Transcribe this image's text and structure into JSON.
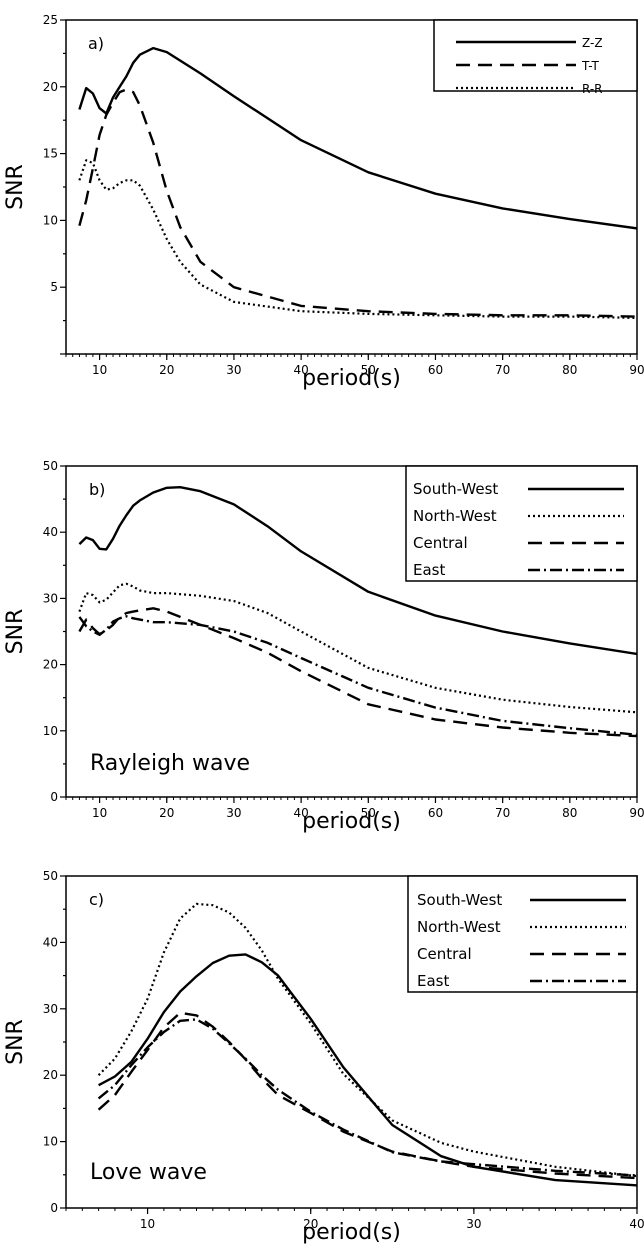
{
  "chart_data": [
    {
      "type": "line",
      "panel_label": "a)",
      "xlabel": "period(s)",
      "ylabel": "SNR",
      "xlim": [
        5,
        90
      ],
      "ylim": [
        0,
        25
      ],
      "xticks": [
        10,
        20,
        30,
        40,
        50,
        60,
        70,
        80,
        90
      ],
      "yticks": [
        5,
        10,
        15,
        20,
        25
      ],
      "legend_position": "top-right",
      "annotation": "",
      "series": [
        {
          "name": "Z-Z",
          "dash": "solid",
          "x": [
            7,
            8,
            9,
            10,
            11,
            12,
            13,
            14,
            15,
            16,
            18,
            20,
            25,
            30,
            40,
            50,
            60,
            70,
            80,
            90
          ],
          "y": [
            18.3,
            19.9,
            19.5,
            18.4,
            18.0,
            19.2,
            20.0,
            20.8,
            21.8,
            22.4,
            22.9,
            22.6,
            21.0,
            19.3,
            16.0,
            13.6,
            12.0,
            10.9,
            10.1,
            9.4
          ]
        },
        {
          "name": "T-T",
          "dash": "dashed",
          "x": [
            7,
            8,
            9,
            10,
            11,
            12,
            13,
            14,
            15,
            16,
            18,
            20,
            22,
            25,
            30,
            40,
            50,
            60,
            70,
            80,
            90
          ],
          "y": [
            9.6,
            11.5,
            13.9,
            16.4,
            17.9,
            18.8,
            19.6,
            19.8,
            19.6,
            18.6,
            15.8,
            12.2,
            9.5,
            6.9,
            5.0,
            3.6,
            3.2,
            3.0,
            2.9,
            2.9,
            2.8
          ]
        },
        {
          "name": "R-R",
          "dash": "dotted",
          "x": [
            7,
            8,
            9,
            10,
            11,
            12,
            13,
            14,
            15,
            16,
            18,
            20,
            22,
            25,
            30,
            40,
            50,
            60,
            70,
            80,
            90
          ],
          "y": [
            13.0,
            14.5,
            14.3,
            13.0,
            12.3,
            12.4,
            12.8,
            13.0,
            13.0,
            12.6,
            10.8,
            8.6,
            6.9,
            5.2,
            3.9,
            3.2,
            3.0,
            2.9,
            2.8,
            2.8,
            2.7
          ]
        }
      ]
    },
    {
      "type": "line",
      "panel_label": "b)",
      "xlabel": "period(s)",
      "ylabel": "SNR",
      "xlim": [
        5,
        90
      ],
      "ylim": [
        0,
        50
      ],
      "xticks": [
        10,
        20,
        30,
        40,
        50,
        60,
        70,
        80,
        90
      ],
      "yticks": [
        0,
        10,
        20,
        30,
        40,
        50
      ],
      "legend_position": "top-right",
      "annotation": "Rayleigh wave",
      "series": [
        {
          "name": "South-West",
          "dash": "solid",
          "x": [
            7,
            8,
            9,
            10,
            11,
            12,
            13,
            14,
            15,
            16,
            18,
            20,
            22,
            25,
            30,
            35,
            40,
            50,
            60,
            70,
            80,
            90
          ],
          "y": [
            38.2,
            39.2,
            38.8,
            37.5,
            37.4,
            39.0,
            41.0,
            42.6,
            44.0,
            44.8,
            46.0,
            46.7,
            46.8,
            46.2,
            44.2,
            40.9,
            37.1,
            31.0,
            27.4,
            25.0,
            23.2,
            21.6
          ]
        },
        {
          "name": "North-West",
          "dash": "dotted",
          "x": [
            7,
            8,
            9,
            10,
            11,
            12,
            13,
            14,
            15,
            16,
            18,
            20,
            25,
            30,
            35,
            40,
            50,
            60,
            70,
            80,
            90
          ],
          "y": [
            28.0,
            30.8,
            30.5,
            29.4,
            29.8,
            30.9,
            32.0,
            32.2,
            31.8,
            31.2,
            30.8,
            30.8,
            30.4,
            29.6,
            27.8,
            25.0,
            19.5,
            16.5,
            14.7,
            13.6,
            12.8
          ]
        },
        {
          "name": "Central",
          "dash": "dashed",
          "x": [
            7,
            8,
            9,
            10,
            11,
            12,
            13,
            14,
            15,
            16,
            18,
            20,
            25,
            30,
            35,
            40,
            50,
            60,
            70,
            80,
            90
          ],
          "y": [
            25.0,
            26.8,
            25.5,
            24.6,
            25.2,
            26.0,
            27.2,
            27.8,
            28.0,
            28.2,
            28.5,
            28.0,
            26.0,
            24.0,
            21.8,
            19.0,
            14.0,
            11.7,
            10.5,
            9.7,
            9.2
          ]
        },
        {
          "name": "East",
          "dash": "dashdot",
          "x": [
            7,
            8,
            9,
            10,
            11,
            12,
            13,
            14,
            15,
            16,
            18,
            20,
            25,
            30,
            35,
            40,
            50,
            60,
            70,
            80,
            90
          ],
          "y": [
            27.2,
            25.8,
            25.0,
            24.5,
            25.3,
            26.5,
            27.0,
            27.3,
            27.0,
            26.8,
            26.4,
            26.4,
            26.0,
            25.0,
            23.3,
            21.0,
            16.5,
            13.5,
            11.5,
            10.4,
            9.4
          ]
        }
      ]
    },
    {
      "type": "line",
      "panel_label": "c)",
      "xlabel": "period(s)",
      "ylabel": "SNR",
      "xlim": [
        5,
        40
      ],
      "ylim": [
        0,
        50
      ],
      "xticks": [
        10,
        20,
        30,
        40
      ],
      "yticks": [
        0,
        10,
        20,
        30,
        40,
        50
      ],
      "legend_position": "top-right",
      "annotation": "Love wave",
      "series": [
        {
          "name": "South-West",
          "dash": "solid",
          "x": [
            7,
            8,
            9,
            10,
            11,
            12,
            13,
            14,
            15,
            16,
            17,
            18,
            20,
            22,
            25,
            28,
            30,
            35,
            40
          ],
          "y": [
            18.5,
            19.8,
            22.0,
            25.5,
            29.5,
            32.6,
            34.9,
            36.9,
            38.0,
            38.2,
            37.0,
            35.0,
            28.5,
            21.2,
            12.5,
            7.8,
            6.2,
            4.2,
            3.4
          ]
        },
        {
          "name": "North-West",
          "dash": "dotted",
          "x": [
            7,
            8,
            9,
            10,
            11,
            12,
            13,
            14,
            15,
            16,
            17,
            18,
            20,
            22,
            25,
            28,
            30,
            35,
            40
          ],
          "y": [
            20.0,
            22.5,
            26.6,
            31.5,
            38.5,
            43.6,
            45.8,
            45.6,
            44.5,
            42.2,
            38.8,
            34.5,
            27.8,
            20.2,
            13.2,
            9.8,
            8.5,
            6.2,
            4.8
          ]
        },
        {
          "name": "Central",
          "dash": "dashed",
          "x": [
            7,
            8,
            9,
            10,
            11,
            12,
            13,
            14,
            15,
            16,
            17,
            18,
            20,
            22,
            25,
            28,
            30,
            35,
            40
          ],
          "y": [
            14.8,
            17.0,
            20.5,
            23.8,
            27.2,
            29.4,
            29.0,
            27.3,
            25.0,
            22.4,
            19.5,
            17.0,
            14.3,
            11.5,
            8.5,
            7.0,
            6.2,
            5.2,
            4.5
          ]
        },
        {
          "name": "East",
          "dash": "dashdot",
          "x": [
            7,
            8,
            9,
            10,
            11,
            12,
            13,
            14,
            15,
            16,
            17,
            18,
            20,
            22,
            25,
            28,
            30,
            35,
            40
          ],
          "y": [
            16.5,
            18.5,
            21.5,
            24.2,
            26.5,
            28.2,
            28.4,
            27.0,
            24.8,
            22.5,
            20.0,
            17.8,
            14.5,
            11.8,
            8.4,
            7.0,
            6.6,
            5.6,
            4.9
          ]
        }
      ]
    }
  ]
}
